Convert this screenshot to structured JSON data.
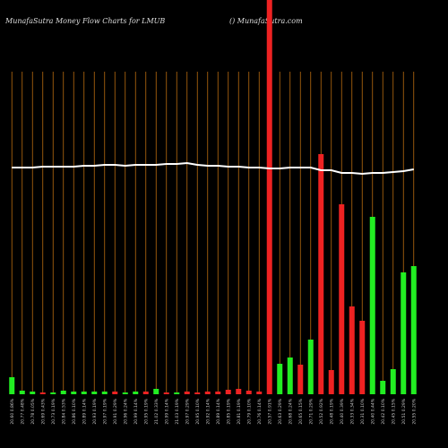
{
  "chart_data": {
    "type": "bar",
    "title": "MunafaSutra  Money Flow  Charts for LMUB",
    "subtitle": "() MunafaSutra.com",
    "categories": [
      "20.60 0.86%",
      "20.77 0.48%",
      "20.78 0.05%",
      "20.69 0.43%",
      "20.73 0.19%",
      "20.84 0.53%",
      "20.86 0.10%",
      "20.89 0.14%",
      "20.93 0.19%",
      "20.97 0.19%",
      "20.91 0.29%",
      "20.96 0.24%",
      "20.99 0.14%",
      "20.95 0.19%",
      "21.02 0.33%",
      "20.99 0.14%",
      "21.03 0.19%",
      "20.97 0.29%",
      "20.95 0.10%",
      "20.92 0.14%",
      "20.89 0.14%",
      "20.85 0.19%",
      "20.81 0.19%",
      "20.79 0.10%",
      "20.76 0.14%",
      "20.57 0.91%",
      "20.63 0.29%",
      "20.68 0.24%",
      "20.65 0.15%",
      "20.71 0.29%",
      "20.52 0.92%",
      "20.48 0.19%",
      "20.40 0.39%",
      "20.33 0.34%",
      "20.31 0.10%",
      "20.40 0.44%",
      "20.42 0.10%",
      "20.45 0.15%",
      "20.51 0.29%",
      "20.55 0.20%"
    ],
    "values": [
      19,
      4,
      3,
      2,
      2,
      4,
      3,
      3,
      3,
      3,
      3,
      2,
      3,
      3,
      6,
      2,
      2,
      3,
      2,
      3,
      3,
      5,
      6,
      4,
      3,
      440,
      34,
      41,
      33,
      61,
      268,
      27,
      212,
      98,
      82,
      198,
      15,
      28,
      136,
      143
    ],
    "colors": [
      "#2e2",
      "#2e2",
      "#2e2",
      "#e22",
      "#2e2",
      "#2e2",
      "#2e2",
      "#2e2",
      "#2e2",
      "#2e2",
      "#e22",
      "#2e2",
      "#2e2",
      "#e22",
      "#2e2",
      "#e22",
      "#2e2",
      "#e22",
      "#e22",
      "#e22",
      "#e22",
      "#e22",
      "#e22",
      "#e22",
      "#e22",
      "#e22",
      "#2e2",
      "#2e2",
      "#e22",
      "#2e2",
      "#e22",
      "#e22",
      "#e22",
      "#e22",
      "#e22",
      "#2e2",
      "#2e2",
      "#2e2",
      "#2e2",
      "#2e2"
    ],
    "line": {
      "color": "#ffffff",
      "values": [
        253,
        253,
        253,
        254,
        254,
        254,
        254,
        255,
        255,
        256,
        256,
        255,
        256,
        256,
        256,
        257,
        257,
        258,
        256,
        255,
        255,
        254,
        254,
        253,
        253,
        252,
        252,
        253,
        253,
        253,
        250,
        250,
        247,
        247,
        246,
        247,
        247,
        248,
        249,
        251
      ]
    },
    "ylim": [
      0,
      440
    ],
    "grid_color": "#b86b10"
  }
}
